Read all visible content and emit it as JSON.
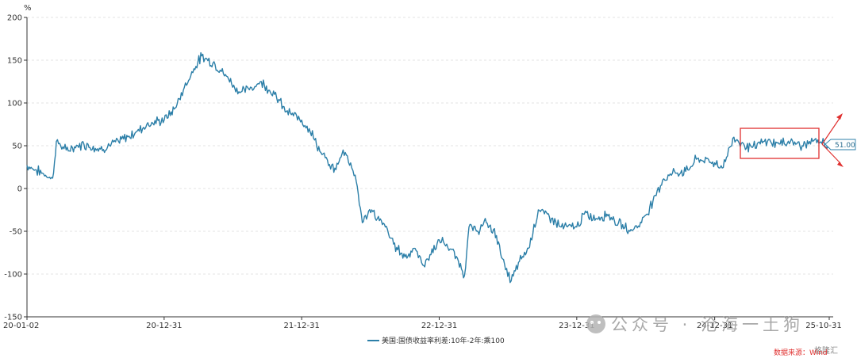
{
  "chart_data": {
    "type": "line",
    "unit_label": "%",
    "y_ticks": [
      "200",
      "150",
      "100",
      "50",
      "0",
      "-50",
      "-100",
      "-150"
    ],
    "ylim": [
      -150,
      200
    ],
    "x_ticks": [
      "20-01-02",
      "20-12-31",
      "21-12-31",
      "22-12-31",
      "23-12-31",
      "24-12-31",
      "25-10-31"
    ],
    "series": [
      {
        "name": "美国:国债收益率利差:10年-2年:乘100",
        "color": "#2c7fa8",
        "x": [
          "20-01-02",
          "20-02-15",
          "20-03-10",
          "20-03-20",
          "20-04-15",
          "20-06-01",
          "20-07-15",
          "20-09-01",
          "20-10-15",
          "20-11-15",
          "20-12-31",
          "21-02-01",
          "21-02-20",
          "21-03-20",
          "21-04-10",
          "21-05-15",
          "21-06-20",
          "21-07-20",
          "21-08-20",
          "21-09-15",
          "21-10-20",
          "21-11-20",
          "21-12-31",
          "22-01-20",
          "22-02-20",
          "22-03-15",
          "22-04-01",
          "22-04-20",
          "22-05-10",
          "22-05-25",
          "22-06-10",
          "22-07-05",
          "22-07-20",
          "22-08-10",
          "22-09-01",
          "22-10-01",
          "22-10-25",
          "22-11-20",
          "22-12-31",
          "23-01-20",
          "23-02-20",
          "23-03-08",
          "23-03-20",
          "23-04-10",
          "23-05-05",
          "23-06-01",
          "23-06-25",
          "23-07-10",
          "23-08-01",
          "23-08-25",
          "23-09-20",
          "23-10-25",
          "23-11-20",
          "23-12-31",
          "24-01-20",
          "24-02-20",
          "24-03-20",
          "24-04-20",
          "24-05-20",
          "24-06-20",
          "24-07-20",
          "24-08-15",
          "24-09-10",
          "24-10-15",
          "24-11-15",
          "24-12-31",
          "25-01-20",
          "25-02-20",
          "25-03-20",
          "25-04-10",
          "25-05-01",
          "25-05-20",
          "25-06-20",
          "25-07-20",
          "25-08-20",
          "25-09-20",
          "25-10-31"
        ],
        "values": [
          27,
          17,
          12,
          55,
          45,
          52,
          46,
          55,
          65,
          75,
          80,
          95,
          115,
          140,
          155,
          145,
          128,
          112,
          118,
          125,
          110,
          90,
          80,
          70,
          42,
          28,
          22,
          45,
          30,
          8,
          -40,
          -25,
          -35,
          -45,
          -65,
          -80,
          -70,
          -90,
          -60,
          -65,
          -85,
          -102,
          -45,
          -50,
          -40,
          -55,
          -95,
          -108,
          -85,
          -70,
          -25,
          -35,
          -45,
          -45,
          -30,
          -35,
          -30,
          -40,
          -50,
          -40,
          -15,
          10,
          18,
          20,
          35,
          30,
          24,
          60,
          50,
          48,
          52,
          55,
          52,
          55,
          50,
          56,
          51
        ]
      }
    ],
    "callout_value": "51.00",
    "watermark": "公众号 · 沧海一土狗",
    "watermark_small": "格隆汇",
    "source_text": "数据来源：Wind"
  }
}
